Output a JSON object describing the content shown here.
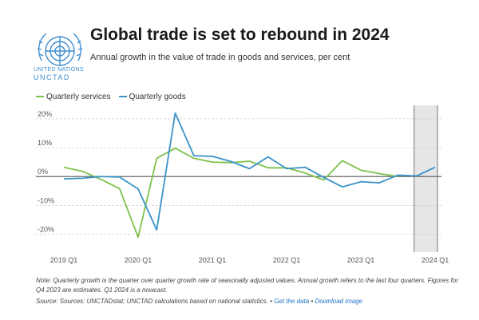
{
  "header": {
    "title": "Global trade is set to rebound in 2024",
    "subtitle": "Annual growth in the value of trade in goods and services, per cent",
    "logo_line1": "UNITED NATIONS",
    "logo_line2": "UNCTAD",
    "logo_color": "#3f8fd0"
  },
  "chart_data": {
    "type": "line",
    "x": [
      "2019 Q1",
      "2019 Q2",
      "2019 Q3",
      "2019 Q4",
      "2020 Q1",
      "2020 Q2",
      "2020 Q3",
      "2020 Q4",
      "2021 Q1",
      "2021 Q2",
      "2021 Q3",
      "2021 Q4",
      "2022 Q1",
      "2022 Q2",
      "2022 Q3",
      "2022 Q4",
      "2023 Q1",
      "2023 Q2",
      "2023 Q3",
      "2023 Q4",
      "2024 Q1"
    ],
    "xticks": [
      "2019 Q1",
      "2020 Q1",
      "2021 Q1",
      "2022 Q1",
      "2023 Q1",
      "2024 Q1"
    ],
    "yticks": [
      20,
      10,
      0,
      -10,
      -20
    ],
    "ytick_labels": [
      "20%",
      "10%",
      "0%",
      "-10%",
      "-20%"
    ],
    "ylim": [
      -24,
      23
    ],
    "series": [
      {
        "name": "Quarterly services",
        "color": "#7dc24b",
        "values": [
          3.2,
          1.8,
          -1.0,
          -4.2,
          -21.0,
          6.3,
          9.8,
          6.3,
          5.0,
          4.8,
          5.3,
          3.0,
          3.0,
          1.2,
          -1.2,
          5.5,
          2.2,
          1.0,
          0.0,
          null,
          null
        ]
      },
      {
        "name": "Quarterly goods",
        "color": "#3a92c8",
        "values": [
          -0.8,
          -0.6,
          0.0,
          -0.2,
          -4.3,
          -18.5,
          22.0,
          7.2,
          7.0,
          5.2,
          2.7,
          6.8,
          2.7,
          3.2,
          -0.3,
          -3.6,
          -1.8,
          -2.2,
          0.5,
          0.2,
          3.2
        ]
      }
    ],
    "shaded_region": {
      "from": "2023 Q4",
      "to": "2024 Q1",
      "color": "#e0e0e0"
    },
    "grid": true,
    "legend_position": "top-left"
  },
  "note": "Note: Quarterly growth is the quarter over quarter growth rate of seasonally adjusted values. Annual growth refers to the last four quarters. Figures for Q4 2023 are estimates. Q1 2024 is a nowcast.",
  "source": {
    "text": "Source: Sources: UNCTADstat; UNCTAD calculations based on national statistics.",
    "separator1": "•",
    "link1": "Get the data",
    "separator2": "•",
    "link2": "Download image"
  }
}
